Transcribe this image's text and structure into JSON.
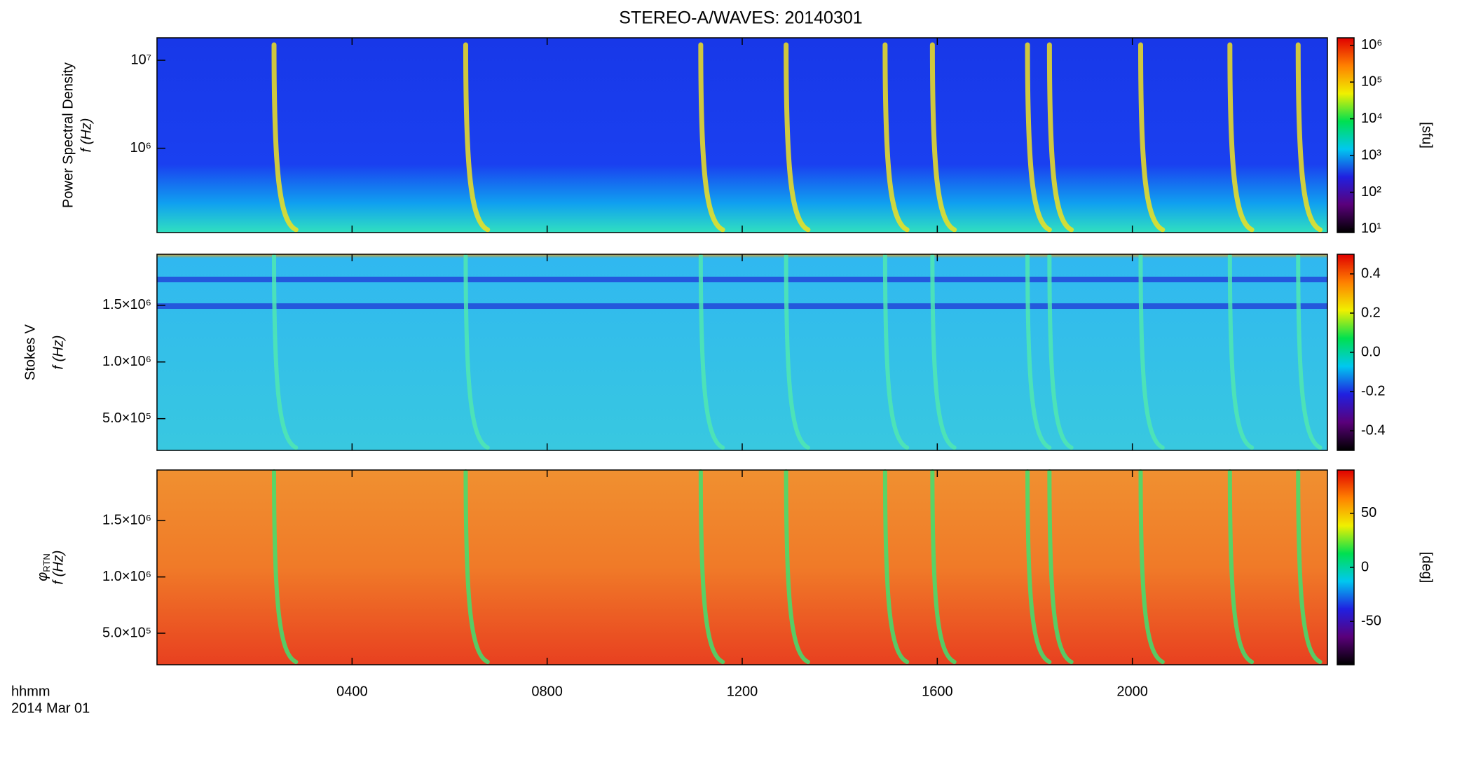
{
  "chart_data": {
    "type": "spectrogram",
    "title": "STEREO-A/WAVES: 20140301",
    "xlabel": "hhmm",
    "date": "2014 Mar 01",
    "xlim": [
      0,
      24
    ],
    "xticks": [
      {
        "value": 4,
        "label": "0400"
      },
      {
        "value": 8,
        "label": "0800"
      },
      {
        "value": 12,
        "label": "1200"
      },
      {
        "value": 16,
        "label": "1600"
      },
      {
        "value": 20,
        "label": "2000"
      }
    ],
    "colormap": [
      "#000000",
      "#5a007a",
      "#2020e0",
      "#00c8f0",
      "#00e050",
      "#f0f000",
      "#ff8000",
      "#e00000"
    ],
    "bursts": {
      "x": [
        2.4,
        6.33,
        11.15,
        12.9,
        14.93,
        15.9,
        17.85,
        18.3,
        20.17,
        22.0,
        23.4
      ]
    },
    "panels": [
      {
        "ylabel": "Power Spectral Density",
        "ylabel2": "f (Hz)",
        "ylog": true,
        "ylim": [
          110000,
          18000000
        ],
        "yticks": [
          {
            "value": 1000000,
            "label": "10⁶"
          },
          {
            "value": 10000000,
            "label": "10⁷"
          }
        ],
        "clog": true,
        "clim": [
          8,
          1600000
        ],
        "cticks": [
          {
            "value": 10,
            "label": "10¹"
          },
          {
            "value": 100,
            "label": "10²"
          },
          {
            "value": 1000,
            "label": "10³"
          },
          {
            "value": 10000,
            "label": "10⁴"
          },
          {
            "value": 100000,
            "label": "10⁵"
          },
          {
            "value": 1000000,
            "label": "10⁶"
          }
        ],
        "clabel": "[sfu]",
        "burst_color": "#f0e020"
      },
      {
        "ylabel": "Stokes V",
        "ylabel2": "f (Hz)",
        "ylog": false,
        "ylim": [
          220000,
          1950000
        ],
        "yticks": [
          {
            "value": 500000,
            "label": "5.0×10⁵"
          },
          {
            "value": 1000000,
            "label": "1.0×10⁶"
          },
          {
            "value": 1500000,
            "label": "1.5×10⁶"
          }
        ],
        "clog": false,
        "clim": [
          -0.5,
          0.5
        ],
        "cticks": [
          -0.4,
          -0.2,
          {
            "value": 0,
            "label": "0.0"
          },
          0.2,
          0.4
        ],
        "burst_color": "#50e8b0"
      },
      {
        "ylabel": "φ",
        "ylabel_sub": "RTN",
        "ylabel2": "f (Hz)",
        "ylog": false,
        "ylim": [
          220000,
          1950000
        ],
        "yticks": [
          {
            "value": 500000,
            "label": "5.0×10⁵"
          },
          {
            "value": 1000000,
            "label": "1.0×10⁶"
          },
          {
            "value": 1500000,
            "label": "1.5×10⁶"
          }
        ],
        "clog": false,
        "clim": [
          -90,
          90
        ],
        "cticks": [
          -50,
          0,
          50
        ],
        "clabel": "[deg]",
        "burst_color": "#40e070"
      }
    ]
  }
}
